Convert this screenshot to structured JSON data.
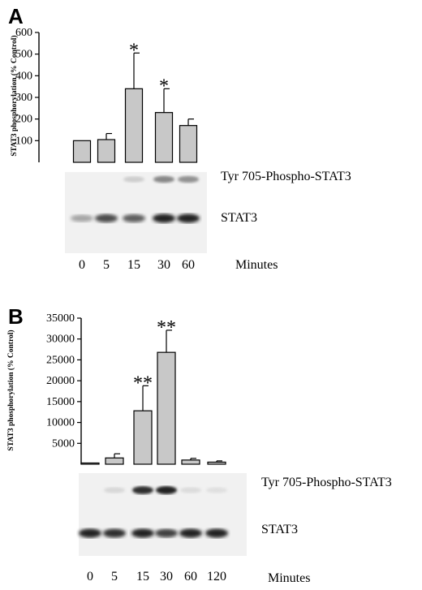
{
  "chart_data": [
    {
      "panel": "A",
      "type": "bar",
      "ylabel": "STAT3 phosphorylation (% Control)",
      "yticks": [
        100,
        200,
        300,
        400,
        500,
        600
      ],
      "ylim": [
        0,
        600
      ],
      "categories": [
        "0",
        "5",
        "15",
        "30",
        "60"
      ],
      "values": [
        100,
        105,
        340,
        230,
        170
      ],
      "errors": [
        0,
        28,
        165,
        110,
        30
      ],
      "significance": [
        "",
        "",
        "*",
        "*",
        ""
      ],
      "bar_color": "#c8c8c8",
      "blot_labels": [
        "Tyr 705-Phospho-STAT3",
        "STAT3"
      ],
      "xlabel": "Minutes"
    },
    {
      "panel": "B",
      "type": "bar",
      "ylabel": "STAT3 phosphorylation (% Control)",
      "yticks": [
        5000,
        10000,
        15000,
        20000,
        25000,
        30000,
        35000
      ],
      "ylim": [
        0,
        35000
      ],
      "categories": [
        "0",
        "5",
        "15",
        "30",
        "60",
        "120"
      ],
      "values": [
        100,
        1500,
        12800,
        26800,
        1000,
        500
      ],
      "errors": [
        0,
        1000,
        6000,
        5300,
        400,
        300
      ],
      "significance": [
        "",
        "",
        "**",
        "**",
        "",
        ""
      ],
      "bar_color": "#c8c8c8",
      "blot_labels": [
        "Tyr 705-Phospho-STAT3",
        "STAT3"
      ],
      "xlabel": "Minutes"
    }
  ]
}
